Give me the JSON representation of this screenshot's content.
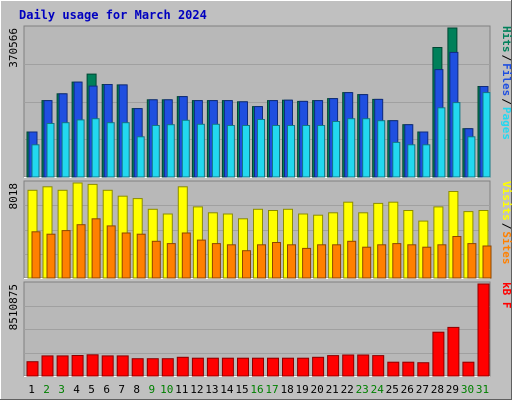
{
  "chart_data": {
    "type": "bar",
    "title": "Daily usage for March 2024",
    "categories": [
      "1",
      "2",
      "3",
      "4",
      "5",
      "6",
      "7",
      "8",
      "9",
      "10",
      "11",
      "12",
      "13",
      "14",
      "15",
      "16",
      "17",
      "18",
      "19",
      "20",
      "21",
      "22",
      "23",
      "24",
      "25",
      "26",
      "27",
      "28",
      "29",
      "30",
      "31"
    ],
    "weekend_days": [
      "2",
      "3",
      "9",
      "10",
      "16",
      "17",
      "23",
      "24",
      "30",
      "31"
    ],
    "colors": {
      "background": "#c0c0c0",
      "panel": "#b8b8b8",
      "grid": "#a0a0a0",
      "title": "#0000c0",
      "axis_text": "#000000",
      "weekend_text": "#008000",
      "hits": "#00805a",
      "files": "#1f4fe0",
      "pages": "#22d8f0",
      "visits": "#ffff00",
      "sites": "#ff8000",
      "kbf": "#ff0000"
    },
    "panels": [
      {
        "id": "hits-files-pages",
        "ymax": 370566,
        "ymax_label": "370566",
        "legend": [
          "Pages",
          "/",
          "Files",
          "/",
          "Hits"
        ],
        "series": [
          {
            "name": "Hits",
            "values": [
              112000,
              190000,
              207000,
              236000,
              256000,
              230000,
              229000,
              170000,
              192000,
              192000,
              200000,
              190000,
              190000,
              190000,
              187000,
              175000,
              190000,
              191000,
              188000,
              190000,
              195000,
              210000,
              205000,
              193000,
              140000,
              130000,
              112000,
              322000,
              370566,
              120000,
              225000
            ]
          },
          {
            "name": "Files",
            "values": [
              112000,
              190000,
              207000,
              236000,
              226000,
              230000,
              229000,
              170000,
              192000,
              192000,
              200000,
              190000,
              190000,
              190000,
              187000,
              175000,
              190000,
              191000,
              188000,
              190000,
              195000,
              210000,
              205000,
              193000,
              140000,
              130000,
              112000,
              267000,
              310000,
              120000,
              225000
            ]
          },
          {
            "name": "Pages",
            "values": [
              80000,
              133000,
              135000,
              142000,
              145000,
              135000,
              135000,
              100000,
              128000,
              130000,
              141000,
              131000,
              131000,
              128000,
              128000,
              143000,
              128000,
              128000,
              128000,
              128000,
              138000,
              145000,
              145000,
              140000,
              86000,
              80000,
              80000,
              172000,
              185000,
              100000,
              210000
            ]
          }
        ]
      },
      {
        "id": "visits-sites",
        "ymax": 8018,
        "ymax_label": "8018",
        "legend": [
          "Sites",
          "/",
          "Visits"
        ],
        "series": [
          {
            "name": "Visits",
            "values": [
              7400,
              7700,
              7400,
              8018,
              7900,
              7400,
              6900,
              6700,
              5800,
              5400,
              7700,
              6000,
              5500,
              5400,
              5000,
              5800,
              5700,
              5800,
              5400,
              5300,
              5500,
              6400,
              5500,
              6300,
              6400,
              5700,
              4800,
              6000,
              7300,
              5600,
              5700
            ]
          },
          {
            "name": "Sites",
            "values": [
              3900,
              3700,
              4000,
              4500,
              5000,
              4400,
              3800,
              3700,
              3100,
              2900,
              3800,
              3200,
              2900,
              2800,
              2300,
              2800,
              3000,
              2800,
              2500,
              2800,
              2800,
              3100,
              2600,
              2800,
              2900,
              2800,
              2600,
              2800,
              3500,
              2900,
              2700
            ]
          }
        ]
      },
      {
        "id": "kbf",
        "ymax": 8510875,
        "ymax_label": "8510875",
        "legend": [
          "kB F"
        ],
        "series": [
          {
            "name": "kB F",
            "values": [
              1320000,
              1860000,
              1860000,
              1900000,
              1960000,
              1860000,
              1860000,
              1600000,
              1600000,
              1600000,
              1730000,
              1650000,
              1650000,
              1650000,
              1650000,
              1650000,
              1650000,
              1650000,
              1650000,
              1730000,
              1890000,
              1940000,
              1940000,
              1890000,
              1280000,
              1280000,
              1230000,
              4050000,
              4500000,
              1280000,
              8510875
            ]
          }
        ]
      }
    ]
  }
}
